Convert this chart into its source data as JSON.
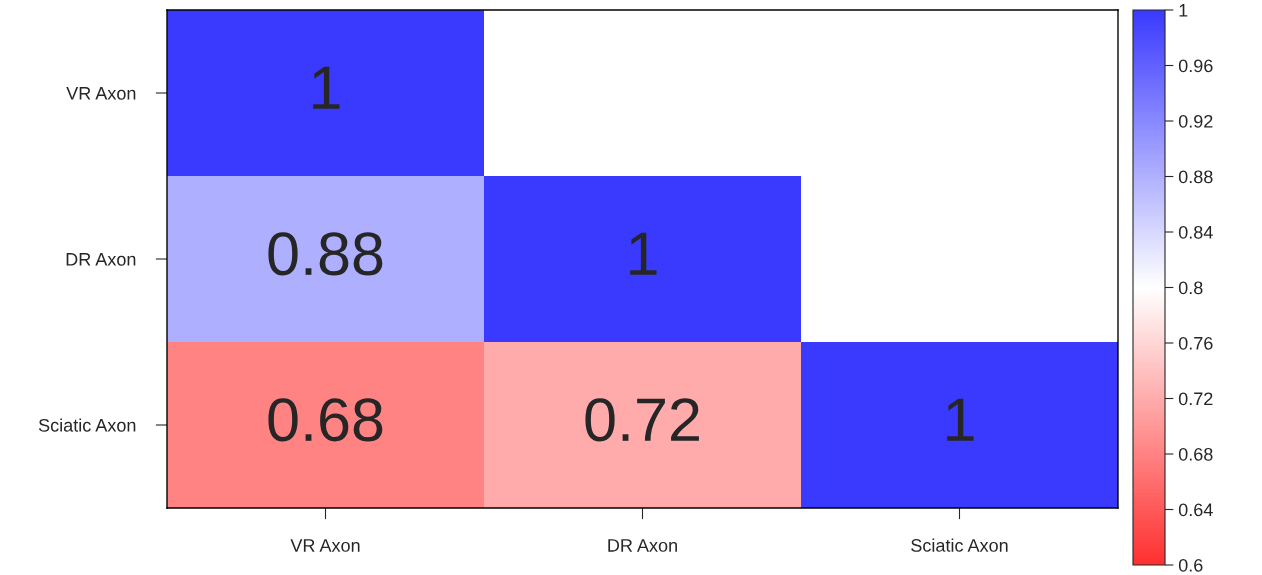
{
  "chart_data": {
    "type": "heatmap",
    "categories": [
      "VR Axon",
      "DR Axon",
      "Sciatic Axon"
    ],
    "y_categories": [
      "VR Axon",
      "DR Axon",
      "Sciatic Axon"
    ],
    "cells": [
      [
        1,
        null,
        null
      ],
      [
        0.88,
        1,
        null
      ],
      [
        0.68,
        0.72,
        1
      ]
    ],
    "data_labels": true,
    "colors": [
      "#ff3030",
      "#ffffff",
      "#3a3aff"
    ],
    "clim": [
      0.6,
      1
    ],
    "cticks": [
      0.6,
      0.64,
      0.68,
      0.72,
      0.76,
      0.8,
      0.84,
      0.88,
      0.92,
      0.96,
      1
    ],
    "grid": false
  }
}
